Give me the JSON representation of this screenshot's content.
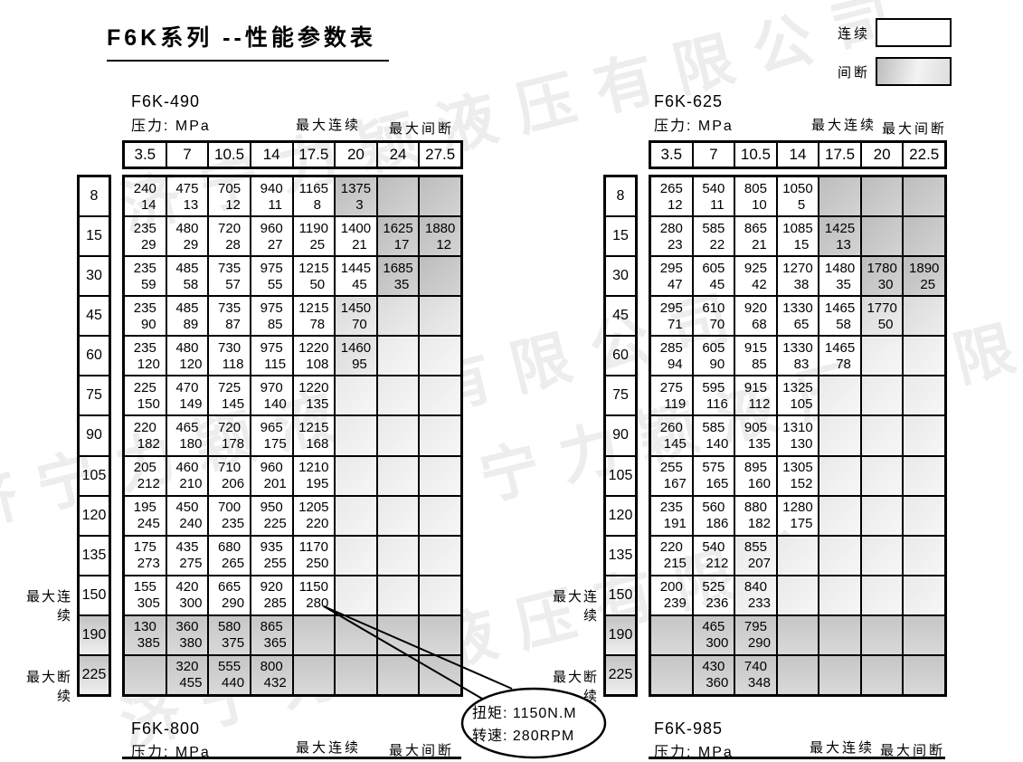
{
  "title": "F6K系列 --性能参数表",
  "watermark": "济宁力颖液压有限公司",
  "legend": {
    "continuous": "连续",
    "intermittent": "间断"
  },
  "labels": {
    "pressure": "压力: MPa",
    "max_continuous": "最大连续",
    "max_intermittent": "最大间断",
    "max_discontinuous": "最大断续"
  },
  "callout": {
    "torque": "扭矩: 1150N.M",
    "speed": "转速: 280RPM"
  },
  "tables": [
    {
      "model": "F6K-490",
      "columns": [
        "3.5",
        "7",
        "10.5",
        "14",
        "17.5",
        "20",
        "24",
        "27.5"
      ],
      "rows": [
        {
          "speed": "8",
          "hs": 0,
          "cells": [
            [
              "240",
              "14",
              0
            ],
            [
              "475",
              "13",
              0
            ],
            [
              "705",
              "12",
              0
            ],
            [
              "940",
              "11",
              0
            ],
            [
              "1165",
              "8",
              0
            ],
            [
              "1375",
              "3",
              3
            ],
            [
              "",
              "",
              3
            ],
            [
              "",
              "",
              3
            ]
          ]
        },
        {
          "speed": "15",
          "hs": 0,
          "cells": [
            [
              "235",
              "29",
              0
            ],
            [
              "480",
              "29",
              0
            ],
            [
              "720",
              "28",
              0
            ],
            [
              "960",
              "27",
              0
            ],
            [
              "1190",
              "25",
              0
            ],
            [
              "1400",
              "21",
              0
            ],
            [
              "1625",
              "17",
              3
            ],
            [
              "1880",
              "12",
              3
            ]
          ]
        },
        {
          "speed": "30",
          "hs": 0,
          "cells": [
            [
              "235",
              "59",
              0
            ],
            [
              "485",
              "58",
              0
            ],
            [
              "735",
              "57",
              0
            ],
            [
              "975",
              "55",
              0
            ],
            [
              "1215",
              "50",
              0
            ],
            [
              "1445",
              "45",
              0
            ],
            [
              "1685",
              "35",
              3
            ],
            [
              "",
              "",
              3
            ]
          ]
        },
        {
          "speed": "45",
          "hs": 0,
          "cells": [
            [
              "235",
              "90",
              0
            ],
            [
              "485",
              "89",
              0
            ],
            [
              "735",
              "87",
              0
            ],
            [
              "975",
              "85",
              0
            ],
            [
              "1215",
              "78",
              0
            ],
            [
              "1450",
              "70",
              2
            ],
            [
              "",
              "",
              2
            ],
            [
              "",
              "",
              2
            ]
          ]
        },
        {
          "speed": "60",
          "hs": 0,
          "cells": [
            [
              "235",
              "120",
              0
            ],
            [
              "480",
              "120",
              0
            ],
            [
              "730",
              "118",
              0
            ],
            [
              "975",
              "115",
              0
            ],
            [
              "1220",
              "108",
              0
            ],
            [
              "1460",
              "95",
              2
            ],
            [
              "",
              "",
              1
            ],
            [
              "",
              "",
              1
            ]
          ]
        },
        {
          "speed": "75",
          "hs": 0,
          "cells": [
            [
              "225",
              "150",
              0
            ],
            [
              "470",
              "149",
              0
            ],
            [
              "725",
              "145",
              0
            ],
            [
              "970",
              "140",
              0
            ],
            [
              "1220",
              "135",
              0
            ],
            [
              "",
              "",
              1
            ],
            [
              "",
              "",
              1
            ],
            [
              "",
              "",
              1
            ]
          ]
        },
        {
          "speed": "90",
          "hs": 0,
          "cells": [
            [
              "220",
              "182",
              0
            ],
            [
              "465",
              "180",
              0
            ],
            [
              "720",
              "178",
              0
            ],
            [
              "965",
              "175",
              0
            ],
            [
              "1215",
              "168",
              0
            ],
            [
              "",
              "",
              1
            ],
            [
              "",
              "",
              1
            ],
            [
              "",
              "",
              1
            ]
          ]
        },
        {
          "speed": "105",
          "hs": 0,
          "cells": [
            [
              "205",
              "212",
              0
            ],
            [
              "460",
              "210",
              0
            ],
            [
              "710",
              "206",
              0
            ],
            [
              "960",
              "201",
              0
            ],
            [
              "1210",
              "195",
              0
            ],
            [
              "",
              "",
              1
            ],
            [
              "",
              "",
              1
            ],
            [
              "",
              "",
              1
            ]
          ]
        },
        {
          "speed": "120",
          "hs": 0,
          "cells": [
            [
              "195",
              "245",
              0
            ],
            [
              "450",
              "240",
              0
            ],
            [
              "700",
              "235",
              0
            ],
            [
              "950",
              "225",
              0
            ],
            [
              "1205",
              "220",
              0
            ],
            [
              "",
              "",
              1
            ],
            [
              "",
              "",
              1
            ],
            [
              "",
              "",
              1
            ]
          ]
        },
        {
          "speed": "135",
          "hs": 0,
          "cells": [
            [
              "175",
              "273",
              0
            ],
            [
              "435",
              "275",
              0
            ],
            [
              "680",
              "265",
              0
            ],
            [
              "935",
              "255",
              0
            ],
            [
              "1170",
              "250",
              0
            ],
            [
              "",
              "",
              1
            ],
            [
              "",
              "",
              1
            ],
            [
              "",
              "",
              1
            ]
          ]
        },
        {
          "speed": "150",
          "hs": 0,
          "cells": [
            [
              "155",
              "305",
              0
            ],
            [
              "420",
              "300",
              0
            ],
            [
              "665",
              "290",
              0
            ],
            [
              "920",
              "285",
              0
            ],
            [
              "1150",
              "280",
              0
            ],
            [
              "",
              "",
              1
            ],
            [
              "",
              "",
              1
            ],
            [
              "",
              "",
              1
            ]
          ]
        },
        {
          "speed": "190",
          "hs": 1,
          "cells": [
            [
              "130",
              "385",
              4
            ],
            [
              "360",
              "380",
              4
            ],
            [
              "580",
              "375",
              4
            ],
            [
              "865",
              "365",
              4
            ],
            [
              "",
              "",
              4
            ],
            [
              "",
              "",
              4
            ],
            [
              "",
              "",
              4
            ],
            [
              "",
              "",
              4
            ]
          ]
        },
        {
          "speed": "225",
          "hs": 1,
          "cells": [
            [
              "",
              "",
              4
            ],
            [
              "320",
              "455",
              4
            ],
            [
              "555",
              "440",
              4
            ],
            [
              "800",
              "432",
              4
            ],
            [
              "",
              "",
              4
            ],
            [
              "",
              "",
              4
            ],
            [
              "",
              "",
              4
            ],
            [
              "",
              "",
              4
            ]
          ]
        }
      ]
    },
    {
      "model": "F6K-625",
      "columns": [
        "3.5",
        "7",
        "10.5",
        "14",
        "17.5",
        "20",
        "22.5"
      ],
      "rows": [
        {
          "speed": "8",
          "hs": 0,
          "cells": [
            [
              "265",
              "12",
              0
            ],
            [
              "540",
              "11",
              0
            ],
            [
              "805",
              "10",
              0
            ],
            [
              "1050",
              "5",
              0
            ],
            [
              "",
              "",
              3
            ],
            [
              "",
              "",
              3
            ],
            [
              "",
              "",
              3
            ]
          ]
        },
        {
          "speed": "15",
          "hs": 0,
          "cells": [
            [
              "280",
              "23",
              0
            ],
            [
              "585",
              "22",
              0
            ],
            [
              "865",
              "21",
              0
            ],
            [
              "1085",
              "15",
              0
            ],
            [
              "1425",
              "13",
              3
            ],
            [
              "",
              "",
              3
            ],
            [
              "",
              "",
              3
            ]
          ]
        },
        {
          "speed": "30",
          "hs": 0,
          "cells": [
            [
              "295",
              "47",
              0
            ],
            [
              "605",
              "45",
              0
            ],
            [
              "925",
              "42",
              0
            ],
            [
              "1270",
              "38",
              0
            ],
            [
              "1480",
              "35",
              0
            ],
            [
              "1780",
              "30",
              3
            ],
            [
              "1890",
              "25",
              3
            ]
          ]
        },
        {
          "speed": "45",
          "hs": 0,
          "cells": [
            [
              "295",
              "71",
              0
            ],
            [
              "610",
              "70",
              0
            ],
            [
              "920",
              "68",
              0
            ],
            [
              "1330",
              "65",
              0
            ],
            [
              "1465",
              "58",
              0
            ],
            [
              "1770",
              "50",
              2
            ],
            [
              "",
              "",
              2
            ]
          ]
        },
        {
          "speed": "60",
          "hs": 0,
          "cells": [
            [
              "285",
              "94",
              0
            ],
            [
              "605",
              "90",
              0
            ],
            [
              "915",
              "85",
              0
            ],
            [
              "1330",
              "83",
              0
            ],
            [
              "1465",
              "78",
              0
            ],
            [
              "",
              "",
              1
            ],
            [
              "",
              "",
              1
            ]
          ]
        },
        {
          "speed": "75",
          "hs": 0,
          "cells": [
            [
              "275",
              "119",
              0
            ],
            [
              "595",
              "116",
              0
            ],
            [
              "915",
              "112",
              0
            ],
            [
              "1325",
              "105",
              0
            ],
            [
              "",
              "",
              1
            ],
            [
              "",
              "",
              1
            ],
            [
              "",
              "",
              1
            ]
          ]
        },
        {
          "speed": "90",
          "hs": 0,
          "cells": [
            [
              "260",
              "145",
              0
            ],
            [
              "585",
              "140",
              0
            ],
            [
              "905",
              "135",
              0
            ],
            [
              "1310",
              "130",
              0
            ],
            [
              "",
              "",
              1
            ],
            [
              "",
              "",
              1
            ],
            [
              "",
              "",
              1
            ]
          ]
        },
        {
          "speed": "105",
          "hs": 0,
          "cells": [
            [
              "255",
              "167",
              0
            ],
            [
              "575",
              "165",
              0
            ],
            [
              "895",
              "160",
              0
            ],
            [
              "1305",
              "152",
              0
            ],
            [
              "",
              "",
              1
            ],
            [
              "",
              "",
              1
            ],
            [
              "",
              "",
              1
            ]
          ]
        },
        {
          "speed": "120",
          "hs": 0,
          "cells": [
            [
              "235",
              "191",
              0
            ],
            [
              "560",
              "186",
              0
            ],
            [
              "880",
              "182",
              0
            ],
            [
              "1280",
              "175",
              0
            ],
            [
              "",
              "",
              1
            ],
            [
              "",
              "",
              1
            ],
            [
              "",
              "",
              1
            ]
          ]
        },
        {
          "speed": "135",
          "hs": 0,
          "cells": [
            [
              "220",
              "215",
              0
            ],
            [
              "540",
              "212",
              0
            ],
            [
              "855",
              "207",
              1
            ],
            [
              "",
              "",
              1
            ],
            [
              "",
              "",
              1
            ],
            [
              "",
              "",
              1
            ],
            [
              "",
              "",
              1
            ]
          ]
        },
        {
          "speed": "150",
          "hs": 0,
          "cells": [
            [
              "200",
              "239",
              0
            ],
            [
              "525",
              "236",
              0
            ],
            [
              "840",
              "233",
              1
            ],
            [
              "",
              "",
              1
            ],
            [
              "",
              "",
              1
            ],
            [
              "",
              "",
              1
            ],
            [
              "",
              "",
              1
            ]
          ]
        },
        {
          "speed": "190",
          "hs": 1,
          "cells": [
            [
              "",
              "",
              4
            ],
            [
              "465",
              "300",
              4
            ],
            [
              "795",
              "290",
              4
            ],
            [
              "",
              "",
              4
            ],
            [
              "",
              "",
              4
            ],
            [
              "",
              "",
              4
            ],
            [
              "",
              "",
              4
            ]
          ]
        },
        {
          "speed": "225",
          "hs": 1,
          "cells": [
            [
              "",
              "",
              4
            ],
            [
              "430",
              "360",
              4
            ],
            [
              "740",
              "348",
              4
            ],
            [
              "",
              "",
              4
            ],
            [
              "",
              "",
              4
            ],
            [
              "",
              "",
              4
            ],
            [
              "",
              "",
              4
            ]
          ]
        }
      ]
    }
  ],
  "footers": [
    {
      "model": "F6K-800"
    },
    {
      "model": "F6K-985"
    }
  ]
}
